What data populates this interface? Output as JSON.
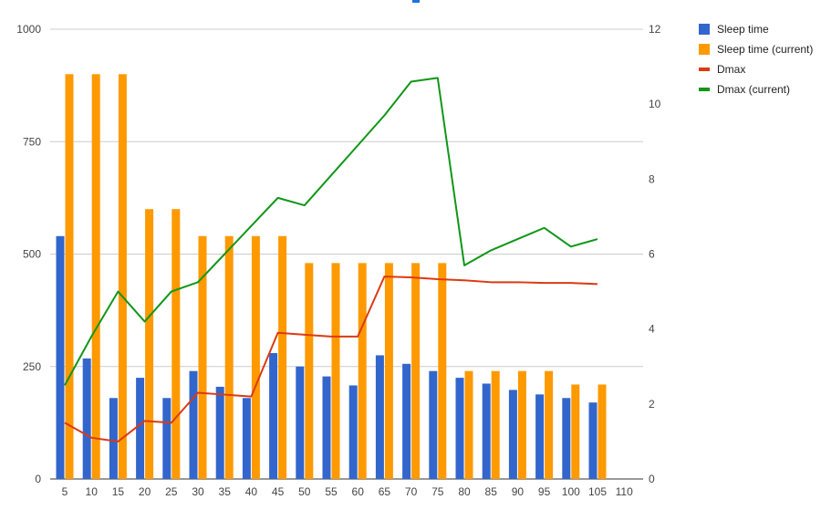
{
  "chart_data": {
    "type": "bar",
    "categories": [
      "5",
      "10",
      "15",
      "20",
      "25",
      "30",
      "35",
      "40",
      "45",
      "50",
      "55",
      "60",
      "65",
      "70",
      "75",
      "80",
      "85",
      "90",
      "95",
      "100",
      "105"
    ],
    "x_extra_tick": "110",
    "series": [
      {
        "name": "Sleep time",
        "kind": "bar",
        "axis": "left",
        "color": "#3366cc",
        "values": [
          540,
          268,
          180,
          225,
          180,
          240,
          205,
          180,
          280,
          250,
          228,
          208,
          275,
          256,
          240,
          225,
          212,
          198,
          188,
          180,
          170
        ]
      },
      {
        "name": "Sleep time (current)",
        "kind": "bar",
        "axis": "left",
        "color": "#ff9900",
        "values": [
          900,
          900,
          900,
          600,
          600,
          540,
          540,
          540,
          540,
          480,
          480,
          480,
          480,
          480,
          480,
          240,
          240,
          240,
          240,
          210,
          210
        ]
      },
      {
        "name": "Dmax",
        "kind": "line",
        "axis": "right",
        "color": "#dc3912",
        "values": [
          1.5,
          1.1,
          1.0,
          1.55,
          1.5,
          2.3,
          2.25,
          2.2,
          3.9,
          3.85,
          3.8,
          3.8,
          5.4,
          5.38,
          5.33,
          5.3,
          5.25,
          5.25,
          5.23,
          5.23,
          5.2
        ]
      },
      {
        "name": "Dmax (current)",
        "kind": "line",
        "axis": "right",
        "color": "#109618",
        "values": [
          2.5,
          3.8,
          5.0,
          4.2,
          5.0,
          5.25,
          6.0,
          6.75,
          7.5,
          7.3,
          8.1,
          8.9,
          9.7,
          10.6,
          10.7,
          5.7,
          6.1,
          6.4,
          6.7,
          6.2,
          6.4
        ]
      }
    ],
    "y_left": {
      "min": 0,
      "max": 1000,
      "ticks": [
        "0",
        "250",
        "500",
        "750",
        "1000"
      ]
    },
    "y_right": {
      "min": 0,
      "max": 12,
      "ticks": [
        "0",
        "2",
        "4",
        "6",
        "8",
        "10",
        "12"
      ]
    },
    "grid": true,
    "legend": "right"
  }
}
